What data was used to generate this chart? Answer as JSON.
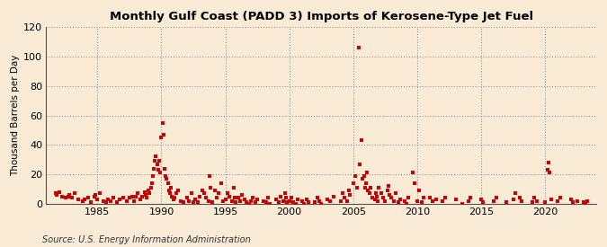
{
  "title": "Monthly Gulf Coast (PADD 3) Imports of Kerosene-Type Jet Fuel",
  "ylabel": "Thousand Barrels per Day",
  "source": "Source: U.S. Energy Information Administration",
  "background_color": "#faebd7",
  "plot_background": "#faebd7",
  "marker_color": "#cc0000",
  "marker_size": 5,
  "ylim": [
    0,
    120
  ],
  "yticks": [
    0,
    20,
    40,
    60,
    80,
    100,
    120
  ],
  "xlim_start": 1981.0,
  "xlim_end": 2024.0,
  "xticks": [
    1985,
    1990,
    1995,
    2000,
    2005,
    2010,
    2015,
    2020
  ],
  "data": [
    [
      1981.75,
      7
    ],
    [
      1981.83,
      6
    ],
    [
      1982.0,
      8
    ],
    [
      1982.25,
      5
    ],
    [
      1982.5,
      4
    ],
    [
      1982.75,
      5
    ],
    [
      1982.83,
      6
    ],
    [
      1983.0,
      4
    ],
    [
      1983.25,
      7
    ],
    [
      1983.5,
      3
    ],
    [
      1983.83,
      2
    ],
    [
      1984.0,
      3
    ],
    [
      1984.25,
      4
    ],
    [
      1984.5,
      1
    ],
    [
      1984.75,
      5
    ],
    [
      1984.83,
      6
    ],
    [
      1985.0,
      3
    ],
    [
      1985.17,
      7
    ],
    [
      1985.5,
      2
    ],
    [
      1985.67,
      1
    ],
    [
      1985.83,
      3
    ],
    [
      1986.0,
      2
    ],
    [
      1986.25,
      4
    ],
    [
      1986.5,
      1
    ],
    [
      1986.75,
      3
    ],
    [
      1987.0,
      4
    ],
    [
      1987.33,
      2
    ],
    [
      1987.5,
      4
    ],
    [
      1987.75,
      5
    ],
    [
      1987.83,
      2
    ],
    [
      1988.0,
      5
    ],
    [
      1988.17,
      7
    ],
    [
      1988.33,
      3
    ],
    [
      1988.5,
      5
    ],
    [
      1988.67,
      8
    ],
    [
      1988.75,
      6
    ],
    [
      1988.83,
      4
    ],
    [
      1989.0,
      9
    ],
    [
      1989.08,
      7
    ],
    [
      1989.17,
      11
    ],
    [
      1989.25,
      14
    ],
    [
      1989.33,
      19
    ],
    [
      1989.42,
      24
    ],
    [
      1989.5,
      29
    ],
    [
      1989.58,
      32
    ],
    [
      1989.67,
      27
    ],
    [
      1989.75,
      23
    ],
    [
      1989.83,
      29
    ],
    [
      1989.92,
      21
    ],
    [
      1990.0,
      45
    ],
    [
      1990.08,
      55
    ],
    [
      1990.17,
      47
    ],
    [
      1990.25,
      24
    ],
    [
      1990.33,
      19
    ],
    [
      1990.42,
      17
    ],
    [
      1990.5,
      14
    ],
    [
      1990.58,
      9
    ],
    [
      1990.67,
      7
    ],
    [
      1990.75,
      11
    ],
    [
      1990.83,
      5
    ],
    [
      1990.92,
      3
    ],
    [
      1991.0,
      4
    ],
    [
      1991.17,
      7
    ],
    [
      1991.33,
      9
    ],
    [
      1991.5,
      2
    ],
    [
      1991.75,
      1
    ],
    [
      1992.0,
      4
    ],
    [
      1992.17,
      2
    ],
    [
      1992.33,
      7
    ],
    [
      1992.5,
      1
    ],
    [
      1992.67,
      3
    ],
    [
      1992.83,
      1
    ],
    [
      1993.0,
      5
    ],
    [
      1993.17,
      9
    ],
    [
      1993.33,
      7
    ],
    [
      1993.5,
      4
    ],
    [
      1993.67,
      2
    ],
    [
      1993.75,
      19
    ],
    [
      1993.83,
      11
    ],
    [
      1994.0,
      1
    ],
    [
      1994.17,
      9
    ],
    [
      1994.33,
      4
    ],
    [
      1994.5,
      7
    ],
    [
      1994.67,
      14
    ],
    [
      1994.83,
      2
    ],
    [
      1995.0,
      3
    ],
    [
      1995.17,
      7
    ],
    [
      1995.33,
      5
    ],
    [
      1995.5,
      2
    ],
    [
      1995.67,
      11
    ],
    [
      1995.75,
      4
    ],
    [
      1995.83,
      1
    ],
    [
      1996.0,
      4
    ],
    [
      1996.17,
      2
    ],
    [
      1996.33,
      6
    ],
    [
      1996.5,
      3
    ],
    [
      1996.67,
      1
    ],
    [
      1996.83,
      0
    ],
    [
      1997.0,
      2
    ],
    [
      1997.17,
      4
    ],
    [
      1997.33,
      1
    ],
    [
      1997.5,
      3
    ],
    [
      1998.0,
      2
    ],
    [
      1998.17,
      1
    ],
    [
      1998.33,
      4
    ],
    [
      1998.5,
      0
    ],
    [
      1999.0,
      3
    ],
    [
      1999.17,
      1
    ],
    [
      1999.33,
      5
    ],
    [
      1999.5,
      2
    ],
    [
      1999.67,
      7
    ],
    [
      1999.75,
      4
    ],
    [
      1999.83,
      1
    ],
    [
      2000.0,
      2
    ],
    [
      2000.17,
      4
    ],
    [
      2000.33,
      1
    ],
    [
      2000.5,
      0
    ],
    [
      2000.67,
      3
    ],
    [
      2001.0,
      2
    ],
    [
      2001.17,
      0
    ],
    [
      2001.33,
      3
    ],
    [
      2001.5,
      1
    ],
    [
      2002.0,
      1
    ],
    [
      2002.17,
      4
    ],
    [
      2002.33,
      2
    ],
    [
      2002.5,
      0
    ],
    [
      2003.0,
      3
    ],
    [
      2003.17,
      2
    ],
    [
      2003.5,
      5
    ],
    [
      2004.0,
      2
    ],
    [
      2004.17,
      7
    ],
    [
      2004.33,
      4
    ],
    [
      2004.5,
      2
    ],
    [
      2004.67,
      9
    ],
    [
      2004.75,
      6
    ],
    [
      2005.0,
      14
    ],
    [
      2005.17,
      19
    ],
    [
      2005.33,
      11
    ],
    [
      2005.42,
      106
    ],
    [
      2005.5,
      27
    ],
    [
      2005.67,
      43
    ],
    [
      2005.75,
      17
    ],
    [
      2005.83,
      19
    ],
    [
      2005.92,
      11
    ],
    [
      2006.0,
      14
    ],
    [
      2006.08,
      21
    ],
    [
      2006.17,
      9
    ],
    [
      2006.25,
      7
    ],
    [
      2006.33,
      11
    ],
    [
      2006.5,
      4
    ],
    [
      2006.67,
      3
    ],
    [
      2006.75,
      7
    ],
    [
      2006.83,
      5
    ],
    [
      2006.92,
      2
    ],
    [
      2007.0,
      11
    ],
    [
      2007.17,
      7
    ],
    [
      2007.33,
      4
    ],
    [
      2007.5,
      2
    ],
    [
      2007.67,
      9
    ],
    [
      2007.75,
      12
    ],
    [
      2007.83,
      6
    ],
    [
      2008.0,
      4
    ],
    [
      2008.17,
      2
    ],
    [
      2008.33,
      7
    ],
    [
      2008.5,
      1
    ],
    [
      2008.67,
      3
    ],
    [
      2009.0,
      2
    ],
    [
      2009.17,
      0
    ],
    [
      2009.33,
      4
    ],
    [
      2009.67,
      21
    ],
    [
      2009.83,
      14
    ],
    [
      2010.0,
      2
    ],
    [
      2010.17,
      9
    ],
    [
      2010.33,
      1
    ],
    [
      2010.5,
      4
    ],
    [
      2011.0,
      4
    ],
    [
      2011.17,
      2
    ],
    [
      2011.5,
      3
    ],
    [
      2012.0,
      2
    ],
    [
      2012.17,
      4
    ],
    [
      2013.0,
      3
    ],
    [
      2013.5,
      0
    ],
    [
      2014.0,
      2
    ],
    [
      2014.17,
      4
    ],
    [
      2015.0,
      3
    ],
    [
      2015.17,
      1
    ],
    [
      2016.0,
      2
    ],
    [
      2016.17,
      4
    ],
    [
      2017.0,
      1
    ],
    [
      2017.5,
      3
    ],
    [
      2017.67,
      7
    ],
    [
      2018.0,
      4
    ],
    [
      2018.17,
      2
    ],
    [
      2019.0,
      1
    ],
    [
      2019.17,
      4
    ],
    [
      2019.33,
      2
    ],
    [
      2020.0,
      1
    ],
    [
      2020.17,
      23
    ],
    [
      2020.25,
      28
    ],
    [
      2020.33,
      21
    ],
    [
      2020.5,
      3
    ],
    [
      2021.0,
      2
    ],
    [
      2021.17,
      4
    ],
    [
      2022.0,
      3
    ],
    [
      2022.17,
      1
    ],
    [
      2022.5,
      2
    ],
    [
      2023.0,
      1
    ],
    [
      2023.17,
      0
    ],
    [
      2023.33,
      2
    ]
  ]
}
